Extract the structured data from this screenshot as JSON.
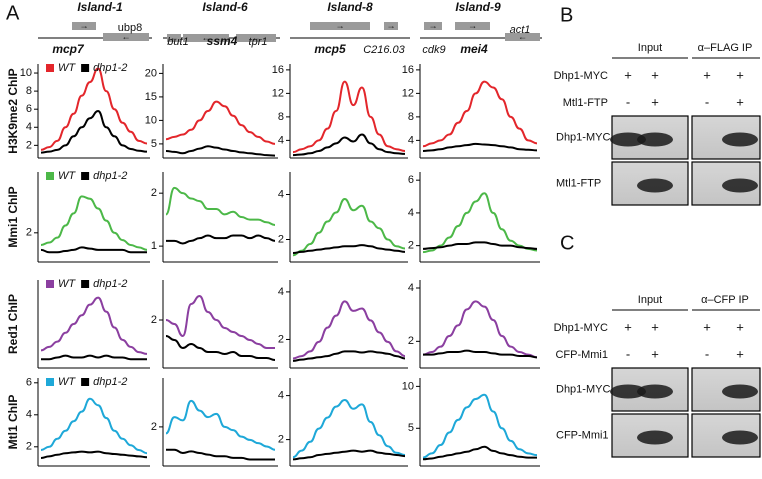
{
  "panel_a": {
    "label": "A",
    "islands": [
      {
        "title": "Island-1",
        "genes": [
          "ubp8",
          "mcp7"
        ]
      },
      {
        "title": "Island-6",
        "genes": [
          "but1",
          "ssm4",
          "tpr1"
        ]
      },
      {
        "title": "Island-8",
        "genes": [
          "mcp5",
          "C216.03"
        ]
      },
      {
        "title": "Island-9",
        "genes": [
          "cdk9",
          "mei4",
          "act1"
        ]
      }
    ],
    "row_labels": [
      "H3K9me2 ChIP",
      "Mmi1 ChIP",
      "Red1 ChIP",
      "Mtl1 ChIP"
    ]
  },
  "chart_data": [
    {
      "type": "line",
      "ylim": [
        0.6,
        11
      ],
      "yticks": [
        2,
        4,
        6,
        8,
        10
      ],
      "series": [
        {
          "name": "WT",
          "color": "#e3262b",
          "values": [
            1.5,
            1.8,
            2.5,
            4,
            5.5,
            7.5,
            9,
            10.5,
            8,
            6,
            4.5,
            3.5,
            2.5,
            2.2
          ]
        },
        {
          "name": "dhp1-2",
          "color": "#000000",
          "values": [
            1.2,
            1.3,
            1.5,
            2,
            3,
            4,
            5,
            5.8,
            4,
            3,
            2,
            1.6,
            1.4,
            1.3
          ]
        }
      ]
    },
    {
      "type": "line",
      "ylim": [
        2,
        22
      ],
      "yticks": [
        5,
        10,
        15,
        20
      ],
      "series": [
        {
          "color": "#e3262b",
          "values": [
            6,
            6.5,
            7,
            8,
            10,
            12,
            14,
            13,
            11,
            9,
            7.5,
            6.5,
            5.5,
            5
          ]
        },
        {
          "color": "#000000",
          "values": [
            3.5,
            3.3,
            3,
            3.5,
            4,
            4.5,
            4.2,
            3.8,
            3.5,
            3.2,
            3,
            2.8,
            2.6,
            2.5
          ]
        }
      ]
    },
    {
      "type": "line",
      "ylim": [
        1,
        17
      ],
      "yticks": [
        4,
        8,
        12,
        16
      ],
      "series": [
        {
          "color": "#e3262b",
          "values": [
            2,
            2.5,
            3,
            4,
            6,
            9,
            14,
            10,
            13,
            8,
            5,
            3,
            2.5,
            2.2
          ]
        },
        {
          "color": "#000000",
          "values": [
            1.5,
            1.6,
            1.8,
            2.2,
            2.8,
            3.5,
            4.5,
            3.8,
            5,
            3.5,
            2.5,
            2,
            1.8,
            1.7
          ]
        }
      ]
    },
    {
      "type": "line",
      "ylim": [
        1,
        17
      ],
      "yticks": [
        4,
        8,
        12,
        16
      ],
      "series": [
        {
          "color": "#e3262b",
          "values": [
            3,
            3.5,
            4,
            5,
            7,
            9,
            12,
            14,
            13,
            11,
            8,
            6,
            4,
            3.5
          ]
        },
        {
          "color": "#000000",
          "values": [
            2.2,
            2.3,
            2.5,
            2.8,
            3,
            3.2,
            3.4,
            3.3,
            3.2,
            3,
            2.8,
            2.5,
            2.4,
            2.3
          ]
        }
      ]
    },
    {
      "type": "line",
      "ylim": [
        0.8,
        4.5
      ],
      "yticks": [
        2
      ],
      "series": [
        {
          "name": "WT",
          "color": "#4cb848",
          "values": [
            1.5,
            1.6,
            1.8,
            2.3,
            2.8,
            3.5,
            3.4,
            3,
            2.5,
            2,
            1.7,
            1.5,
            1.4,
            1.3
          ]
        },
        {
          "name": "dhp1-2",
          "color": "#000000",
          "values": [
            1.3,
            1.2,
            1.2,
            1.25,
            1.3,
            1.4,
            1.35,
            1.3,
            1.3,
            1.3,
            1.3,
            1.2,
            1.2,
            1.2
          ]
        }
      ]
    },
    {
      "type": "line",
      "ylim": [
        0.7,
        2.4
      ],
      "yticks": [
        1,
        2
      ],
      "series": [
        {
          "color": "#4cb848",
          "values": [
            1.6,
            2.1,
            2,
            1.9,
            1.85,
            1.7,
            1.7,
            1.6,
            1.65,
            1.55,
            1.5,
            1.5,
            1.45,
            1.4
          ]
        },
        {
          "color": "#000000",
          "values": [
            1.1,
            1.1,
            1.05,
            1.1,
            1.15,
            1.2,
            1.15,
            1.15,
            1.2,
            1.2,
            1.15,
            1.2,
            1.15,
            1.1
          ]
        }
      ]
    },
    {
      "type": "line",
      "ylim": [
        1,
        5
      ],
      "yticks": [
        2,
        4
      ],
      "series": [
        {
          "color": "#4cb848",
          "values": [
            1.3,
            1.5,
            1.8,
            2.3,
            2.8,
            3.2,
            3.8,
            3.3,
            3.5,
            2.8,
            2.5,
            2,
            1.7,
            1.6
          ]
        },
        {
          "color": "#000000",
          "values": [
            1.4,
            1.45,
            1.5,
            1.55,
            1.6,
            1.65,
            1.7,
            1.7,
            1.75,
            1.7,
            1.6,
            1.55,
            1.5,
            1.45
          ]
        }
      ]
    },
    {
      "type": "line",
      "ylim": [
        1,
        6.5
      ],
      "yticks": [
        2,
        4,
        6
      ],
      "series": [
        {
          "color": "#4cb848",
          "values": [
            1.6,
            1.7,
            2,
            2.5,
            3.2,
            4,
            4.7,
            5.2,
            4,
            3,
            2.3,
            2,
            1.8,
            1.7
          ]
        },
        {
          "color": "#000000",
          "values": [
            1.8,
            1.85,
            1.9,
            2,
            2.1,
            2.1,
            2.2,
            2.2,
            2.1,
            2,
            2,
            1.9,
            1.85,
            1.8
          ]
        }
      ]
    },
    {
      "type": "line",
      "ylim": [
        1,
        6
      ],
      "series": [
        {
          "name": "WT",
          "color": "#8b3fa0",
          "values": [
            2,
            2.2,
            2.5,
            3,
            3.5,
            4,
            4.6,
            5,
            4.2,
            3.3,
            2.6,
            2.2,
            1.9,
            1.8
          ]
        },
        {
          "name": "dhp1-2",
          "color": "#000000",
          "values": [
            1.5,
            1.5,
            1.6,
            1.7,
            1.6,
            1.6,
            1.7,
            1.6,
            1.7,
            1.6,
            1.6,
            1.5,
            1.5,
            1.5
          ]
        }
      ]
    },
    {
      "type": "line",
      "ylim": [
        0.8,
        3
      ],
      "yticks": [
        2
      ],
      "series": [
        {
          "color": "#8b3fa0",
          "values": [
            2,
            1.9,
            1.6,
            2.4,
            2.6,
            2.2,
            2,
            1.8,
            1.7,
            1.6,
            1.5,
            1.4,
            1.3,
            1.3
          ]
        },
        {
          "color": "#000000",
          "values": [
            1.6,
            1.5,
            1.3,
            1.4,
            1.3,
            1.2,
            1.2,
            1.15,
            1.2,
            1.1,
            1.1,
            1.05,
            1.05,
            1.0
          ]
        }
      ]
    },
    {
      "type": "line",
      "ylim": [
        0.8,
        4.5
      ],
      "yticks": [
        2,
        4
      ],
      "series": [
        {
          "color": "#8b3fa0",
          "values": [
            1.2,
            1.3,
            1.5,
            1.9,
            2.5,
            3,
            3.6,
            3.2,
            3.3,
            2.8,
            2.3,
            1.9,
            1.5,
            1.3
          ]
        },
        {
          "color": "#000000",
          "values": [
            1.1,
            1.15,
            1.2,
            1.25,
            1.3,
            1.4,
            1.5,
            1.5,
            1.45,
            1.5,
            1.45,
            1.4,
            1.3,
            1.2
          ]
        }
      ]
    },
    {
      "type": "line",
      "ylim": [
        1,
        4.3
      ],
      "yticks": [
        2,
        4
      ],
      "series": [
        {
          "color": "#8b3fa0",
          "values": [
            1.5,
            1.6,
            1.8,
            2.2,
            2.6,
            3.2,
            3.5,
            3.3,
            2.8,
            2.2,
            1.8,
            1.6,
            1.5,
            1.4
          ]
        },
        {
          "color": "#000000",
          "values": [
            1.5,
            1.5,
            1.55,
            1.6,
            1.6,
            1.65,
            1.6,
            1.6,
            1.55,
            1.5,
            1.5,
            1.45,
            1.45,
            1.4
          ]
        }
      ]
    },
    {
      "type": "line",
      "ylim": [
        0.8,
        6.3
      ],
      "yticks": [
        2,
        4,
        6
      ],
      "series": [
        {
          "name": "WT",
          "color": "#1ea8d8",
          "values": [
            1.8,
            2,
            2.5,
            3,
            3.6,
            4.2,
            5,
            4.6,
            3.8,
            3,
            2.5,
            2.1,
            1.8,
            1.6
          ]
        },
        {
          "name": "dhp1-2",
          "color": "#000000",
          "values": [
            1.3,
            1.4,
            1.5,
            1.6,
            1.65,
            1.7,
            1.65,
            1.7,
            1.6,
            1.55,
            1.5,
            1.45,
            1.4,
            1.35
          ]
        }
      ]
    },
    {
      "type": "line",
      "ylim": [
        0.8,
        3.5
      ],
      "yticks": [
        2
      ],
      "series": [
        {
          "color": "#1ea8d8",
          "values": [
            1.8,
            2.3,
            2.2,
            2.8,
            2.5,
            2.3,
            2.4,
            2,
            1.9,
            1.7,
            1.6,
            1.5,
            1.4,
            1.3
          ]
        },
        {
          "color": "#000000",
          "values": [
            1.3,
            1.3,
            1.2,
            1.25,
            1.2,
            1.15,
            1.1,
            1.1,
            1.05,
            1.05,
            1.0,
            1.0,
            1.0,
            1.0
          ]
        }
      ]
    },
    {
      "type": "line",
      "ylim": [
        0.8,
        4.8
      ],
      "yticks": [
        2,
        4
      ],
      "series": [
        {
          "color": "#1ea8d8",
          "values": [
            1.2,
            1.5,
            1.9,
            2.5,
            3,
            3.5,
            3.8,
            3.4,
            3.6,
            2.8,
            2.2,
            1.7,
            1.4,
            1.3
          ]
        },
        {
          "color": "#000000",
          "values": [
            1.1,
            1.15,
            1.2,
            1.3,
            1.35,
            1.4,
            1.45,
            1.5,
            1.45,
            1.5,
            1.4,
            1.35,
            1.3,
            1.25
          ]
        }
      ]
    },
    {
      "type": "line",
      "ylim": [
        0.5,
        11
      ],
      "yticks": [
        5,
        10
      ],
      "series": [
        {
          "color": "#1ea8d8",
          "values": [
            1.5,
            2,
            3,
            4.5,
            6,
            7.5,
            8.5,
            9,
            7,
            5,
            3.5,
            2.5,
            2,
            1.8
          ]
        },
        {
          "color": "#000000",
          "values": [
            1.3,
            1.4,
            1.6,
            1.8,
            2,
            2.2,
            2.5,
            2.8,
            2.3,
            2,
            1.8,
            1.6,
            1.5,
            1.5
          ]
        }
      ]
    }
  ],
  "panel_b": {
    "label": "B",
    "headers": [
      "Input",
      "α–FLAG IP"
    ],
    "conditions": [
      {
        "name": "Dhp1-MYC",
        "signs": [
          "+",
          "+",
          "+",
          "+"
        ]
      },
      {
        "name": "Mtl1-FTP",
        "signs": [
          "-",
          "+",
          "-",
          "+"
        ]
      }
    ],
    "blots": [
      "Dhp1-MYC",
      "Mtl1-FTP"
    ]
  },
  "panel_c": {
    "label": "C",
    "headers": [
      "Input",
      "α–CFP IP"
    ],
    "conditions": [
      {
        "name": "Dhp1-MYC",
        "signs": [
          "+",
          "+",
          "+",
          "+"
        ]
      },
      {
        "name": "CFP-Mmi1",
        "signs": [
          "-",
          "+",
          "-",
          "+"
        ]
      }
    ],
    "blots": [
      "Dhp1-MYC",
      "CFP-Mmi1"
    ]
  }
}
